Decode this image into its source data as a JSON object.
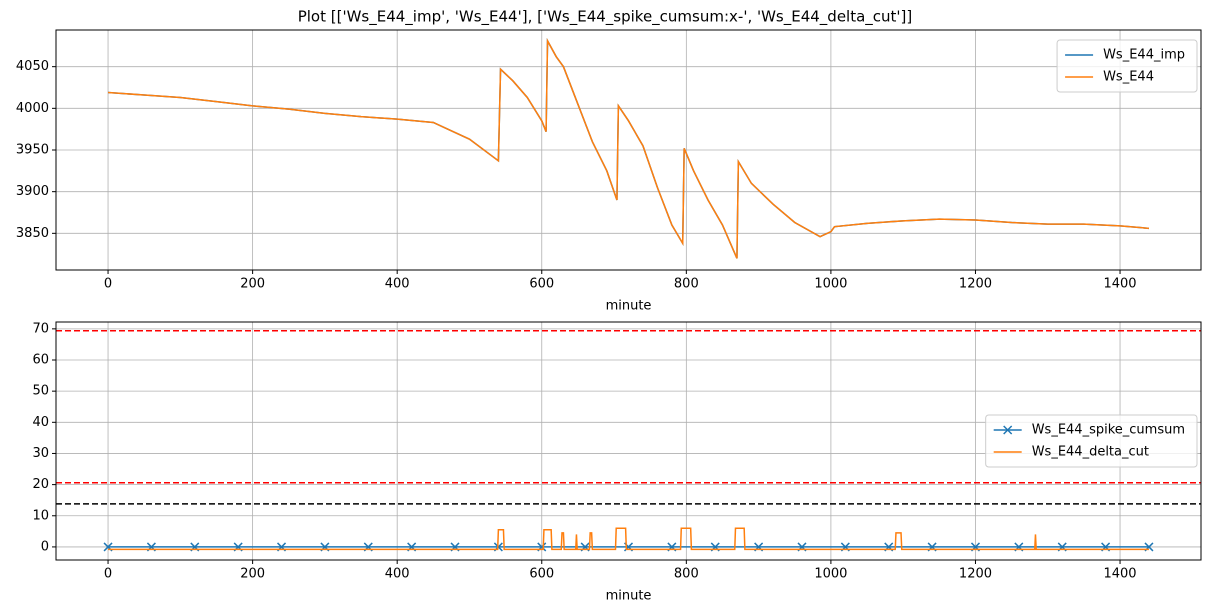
{
  "title": "Plot [['Ws_E44_imp', 'Ws_E44'], ['Ws_E44_spike_cumsum:x-', 'Ws_E44_delta_cut']]",
  "chart_data": [
    {
      "type": "line",
      "xlabel": "minute",
      "xlim": [
        -72,
        1512
      ],
      "ylim": [
        3806,
        4094
      ],
      "xticks": [
        0,
        200,
        400,
        600,
        800,
        1000,
        1200,
        1400
      ],
      "yticks": [
        3850,
        3900,
        3950,
        4000,
        4050
      ],
      "grid": true,
      "legend": "upper right",
      "series": [
        {
          "name": "Ws_E44_imp",
          "color": "#1f77b4",
          "x": [
            0,
            50,
            100,
            150,
            200,
            250,
            300,
            350,
            400,
            450,
            500,
            540,
            543,
            560,
            580,
            600,
            606,
            608,
            620,
            630,
            650,
            670,
            690,
            704,
            706,
            720,
            740,
            760,
            780,
            795,
            797,
            810,
            830,
            850,
            870,
            872,
            890,
            920,
            950,
            985,
            1000,
            1005,
            1050,
            1100,
            1150,
            1200,
            1250,
            1300,
            1350,
            1400,
            1440
          ],
          "values": [
            4019,
            4016,
            4013,
            4008,
            4003,
            3999,
            3994,
            3990,
            3987,
            3983,
            3963,
            3937,
            4047,
            4033,
            4013,
            3985,
            3972,
            4081,
            4062,
            4050,
            4005,
            3960,
            3925,
            3890,
            4003,
            3985,
            3955,
            3905,
            3860,
            3838,
            3952,
            3925,
            3890,
            3860,
            3820,
            3936,
            3910,
            3885,
            3863,
            3846,
            3852,
            3858,
            3862,
            3865,
            3867,
            3866,
            3863,
            3861,
            3861,
            3859,
            3856
          ]
        },
        {
          "name": "Ws_E44",
          "color": "#ff7f0e",
          "x": [
            0,
            50,
            100,
            150,
            200,
            250,
            300,
            350,
            400,
            450,
            500,
            540,
            543,
            560,
            580,
            600,
            606,
            608,
            620,
            630,
            650,
            670,
            690,
            704,
            706,
            720,
            740,
            760,
            780,
            795,
            797,
            810,
            830,
            850,
            870,
            872,
            890,
            920,
            950,
            985,
            1000,
            1005,
            1050,
            1100,
            1150,
            1200,
            1250,
            1300,
            1350,
            1400,
            1440
          ],
          "values": [
            4019,
            4016,
            4013,
            4008,
            4003,
            3999,
            3994,
            3990,
            3987,
            3983,
            3963,
            3937,
            4047,
            4033,
            4013,
            3985,
            3972,
            4081,
            4062,
            4050,
            4005,
            3960,
            3925,
            3890,
            4003,
            3985,
            3955,
            3905,
            3860,
            3838,
            3952,
            3925,
            3890,
            3860,
            3820,
            3936,
            3910,
            3885,
            3863,
            3846,
            3852,
            3858,
            3862,
            3865,
            3867,
            3866,
            3863,
            3861,
            3861,
            3859,
            3856
          ]
        }
      ]
    },
    {
      "type": "line",
      "xlabel": "minute",
      "xlim": [
        -72,
        1512
      ],
      "ylim": [
        -4.2,
        72.2
      ],
      "xticks": [
        0,
        200,
        400,
        600,
        800,
        1000,
        1200,
        1400
      ],
      "yticks": [
        0,
        10,
        20,
        30,
        40,
        50,
        60,
        70
      ],
      "grid": true,
      "legend": "center right",
      "hlines": [
        {
          "value": 69.4,
          "color": "#ff0000"
        },
        {
          "value": 20.6,
          "color": "#ff0000"
        },
        {
          "value": 13.8,
          "color": "#000000"
        }
      ],
      "series": [
        {
          "name": "Ws_E44_spike_cumsum",
          "color": "#1f77b4",
          "marker": "x",
          "x": [
            0,
            60,
            120,
            180,
            240,
            300,
            360,
            420,
            480,
            540,
            600,
            660,
            720,
            780,
            840,
            900,
            960,
            1020,
            1080,
            1140,
            1200,
            1260,
            1320,
            1380,
            1440
          ],
          "values": [
            0,
            0,
            0,
            0,
            0,
            0,
            0,
            0,
            0,
            0,
            0,
            0,
            0,
            0,
            0,
            0,
            0,
            0,
            0,
            0,
            0,
            0,
            0,
            0,
            0
          ]
        },
        {
          "name": "Ws_E44_delta_cut",
          "color": "#ff7f0e",
          "x": [
            0,
            539,
            540,
            547,
            548,
            602,
            603,
            613,
            614,
            627,
            628,
            630,
            631,
            647,
            648,
            649,
            666,
            667,
            669,
            670,
            702,
            703,
            716,
            717,
            792,
            793,
            806,
            807,
            867,
            868,
            880,
            881,
            1089,
            1090,
            1097,
            1098,
            1282,
            1283,
            1284,
            1440
          ],
          "values": [
            -0.8,
            -0.8,
            5.5,
            5.5,
            -0.8,
            -0.8,
            5.5,
            5.5,
            -0.8,
            -0.8,
            4.5,
            4.5,
            -0.8,
            -0.8,
            4,
            -0.8,
            -0.8,
            4.5,
            4.5,
            -0.8,
            -0.8,
            6,
            6,
            -0.8,
            -0.8,
            6,
            6,
            -0.8,
            -0.8,
            6,
            6,
            -0.8,
            -0.8,
            4.5,
            4.5,
            -0.8,
            -0.8,
            4,
            -0.8,
            -0.8
          ]
        }
      ]
    }
  ]
}
